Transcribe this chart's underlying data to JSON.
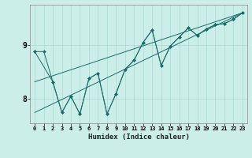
{
  "title": "",
  "xlabel": "Humidex (Indice chaleur)",
  "bg_color": "#cceee8",
  "line_color": "#1a6b6b",
  "grid_color": "#aad8d4",
  "xlim": [
    -0.5,
    23.5
  ],
  "ylim": [
    7.55,
    9.75
  ],
  "yticks": [
    8,
    9
  ],
  "xticks": [
    0,
    1,
    2,
    3,
    4,
    5,
    6,
    7,
    8,
    9,
    10,
    11,
    12,
    13,
    14,
    15,
    16,
    17,
    18,
    19,
    20,
    21,
    22,
    23
  ],
  "series1_x": [
    0,
    1,
    2,
    3,
    4,
    5,
    6,
    7,
    8,
    9,
    10,
    11,
    12,
    13,
    14,
    15,
    16,
    17,
    18,
    19,
    20,
    21,
    22,
    23
  ],
  "series1_y": [
    8.88,
    8.88,
    8.32,
    7.75,
    8.05,
    7.72,
    8.38,
    8.48,
    7.72,
    8.1,
    8.55,
    8.72,
    9.05,
    9.28,
    8.62,
    8.98,
    9.15,
    9.32,
    9.18,
    9.3,
    9.38,
    9.4,
    9.48,
    9.6
  ],
  "series2_x": [
    0,
    2,
    3,
    4,
    5,
    6,
    7,
    8,
    9,
    10,
    11,
    12,
    13,
    14,
    15,
    16,
    17,
    18,
    19,
    20,
    21,
    22,
    23
  ],
  "series2_y": [
    8.88,
    8.32,
    7.75,
    8.05,
    7.72,
    8.38,
    8.48,
    7.72,
    8.1,
    8.55,
    8.72,
    9.05,
    9.28,
    8.62,
    8.98,
    9.15,
    9.32,
    9.18,
    9.3,
    9.38,
    9.4,
    9.48,
    9.6
  ],
  "series3_x": [
    0,
    23
  ],
  "series3_y": [
    8.32,
    9.6
  ],
  "series4_x": [
    0,
    23
  ],
  "series4_y": [
    7.75,
    9.6
  ]
}
